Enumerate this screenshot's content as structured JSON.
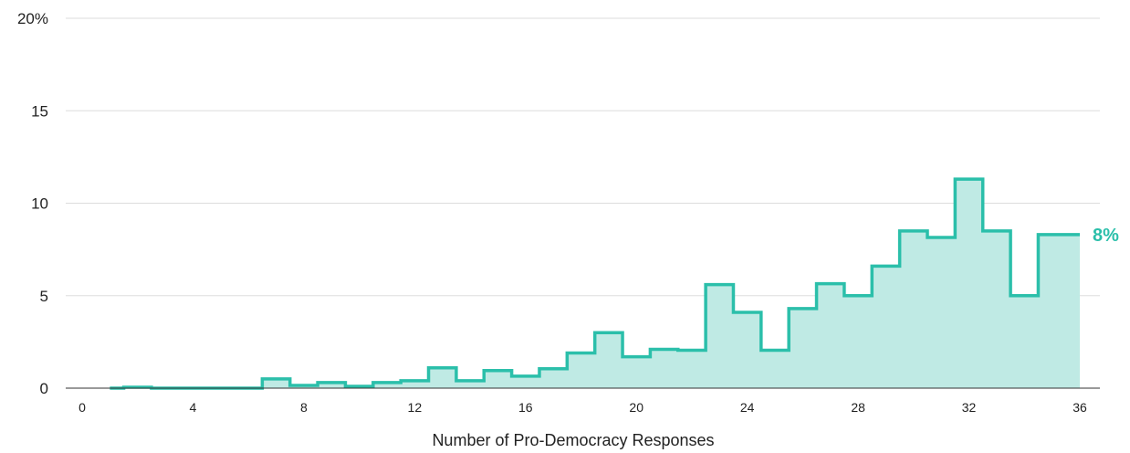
{
  "chart_data": {
    "type": "area",
    "title": "",
    "xlabel": "Number of Pro-Democracy Responses",
    "ylabel": "",
    "xlim": [
      0,
      36
    ],
    "ylim": [
      0,
      20
    ],
    "x_ticks": [
      {
        "value": 0,
        "label": "0"
      },
      {
        "value": 4,
        "label": "4"
      },
      {
        "value": 8,
        "label": "8"
      },
      {
        "value": 12,
        "label": "12"
      },
      {
        "value": 16,
        "label": "16"
      },
      {
        "value": 20,
        "label": "20"
      },
      {
        "value": 24,
        "label": "24"
      },
      {
        "value": 28,
        "label": "28"
      },
      {
        "value": 32,
        "label": "32"
      },
      {
        "value": 36,
        "label": "36"
      }
    ],
    "y_ticks": [
      {
        "value": 0,
        "label": "0"
      },
      {
        "value": 5,
        "label": "5"
      },
      {
        "value": 10,
        "label": "10"
      },
      {
        "value": 15,
        "label": "15"
      },
      {
        "value": 20,
        "label": "20%"
      }
    ],
    "grid": true,
    "step_style": "centered",
    "series": [
      {
        "color": "#2bbfaa",
        "fill": "#bfeae4",
        "x": [
          1,
          2,
          3,
          4,
          5,
          6,
          7,
          8,
          9,
          10,
          11,
          12,
          13,
          14,
          15,
          16,
          17,
          18,
          19,
          20,
          21,
          22,
          23,
          24,
          25,
          26,
          27,
          28,
          29,
          30,
          31,
          32,
          33,
          34,
          35,
          36
        ],
        "values": [
          0.0,
          0.05,
          0.0,
          0.0,
          0.0,
          0.0,
          0.5,
          0.15,
          0.3,
          0.1,
          0.3,
          0.4,
          1.1,
          0.4,
          0.95,
          0.65,
          1.05,
          1.9,
          3.0,
          1.7,
          2.1,
          2.05,
          5.6,
          4.1,
          2.05,
          4.3,
          5.65,
          5.0,
          6.6,
          8.5,
          8.15,
          11.3,
          8.5,
          5.0,
          8.3,
          8.3
        ]
      }
    ],
    "end_label": "8%"
  }
}
